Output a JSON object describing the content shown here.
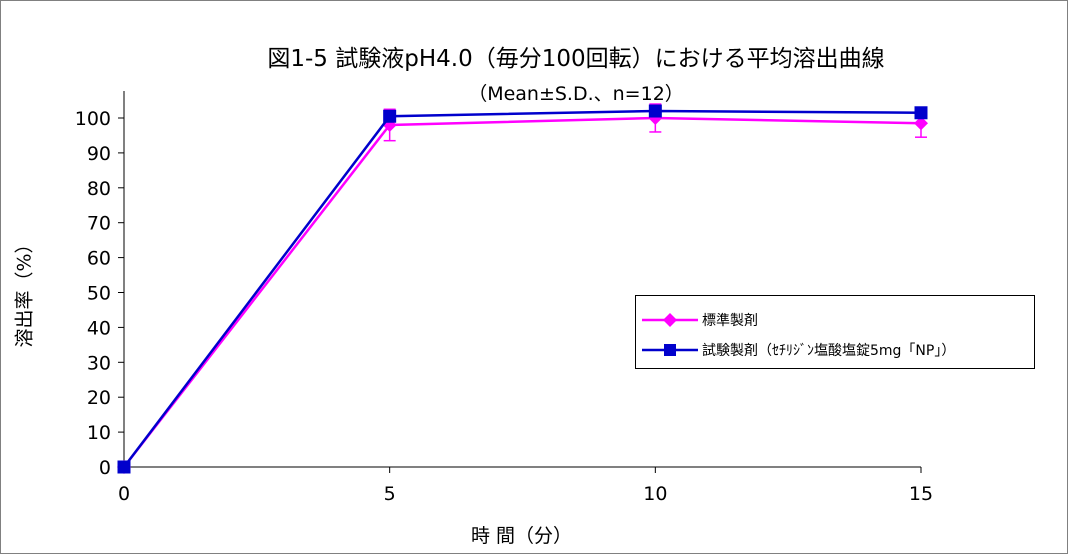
{
  "colors": {
    "standard": "#ff00ff",
    "test": "#0000cc",
    "axis": "#000000",
    "frame": "#808080"
  },
  "chart_data": {
    "type": "line",
    "title": "図1-5  試験液pH4.0（毎分100回転）における平均溶出曲線",
    "subtitle": "（Mean±S.D.、n=12）",
    "xlabel": "時 間（分）",
    "ylabel": "溶出率（%）",
    "xlim": [
      0,
      15
    ],
    "ylim": [
      0,
      100
    ],
    "x_ticks": [
      0,
      5,
      10,
      15
    ],
    "y_ticks": [
      0,
      10,
      20,
      30,
      40,
      50,
      60,
      70,
      80,
      90,
      100
    ],
    "grid": false,
    "legend_position": "right",
    "x": [
      0,
      5,
      10,
      15
    ],
    "series": [
      {
        "name": "標準製剤",
        "values": [
          0,
          98,
          100,
          98.5
        ],
        "sd": [
          0,
          4.5,
          4,
          4
        ],
        "marker": "diamond",
        "color": "#ff00ff"
      },
      {
        "name": "試験製剤（ｾﾁﾘｼﾞﾝ塩酸塩錠5mg「NP」）",
        "values": [
          0,
          100.5,
          102,
          101.5
        ],
        "sd": [
          0,
          1.5,
          1.5,
          1.5
        ],
        "marker": "square",
        "color": "#0000cc"
      }
    ]
  }
}
